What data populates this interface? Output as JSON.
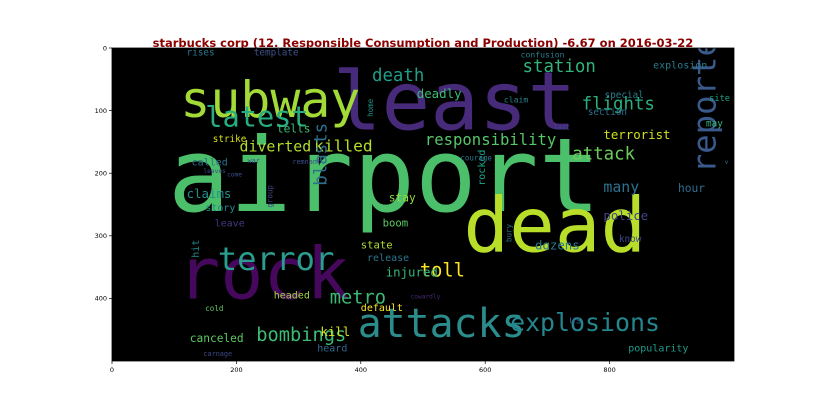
{
  "chart_data": {
    "type": "wordcloud",
    "title": "starbucks corp (12. Responsible Consumption and Production) -6.67 on 2016-03-22",
    "title_color": "#8b0000",
    "background": "#000000",
    "xlim": [
      0,
      1000
    ],
    "ylim": [
      500,
      0
    ],
    "x_ticks": [
      0,
      200,
      400,
      600,
      800
    ],
    "y_ticks": [
      0,
      100,
      200,
      300,
      400
    ],
    "words": [
      {
        "text": "airport",
        "x": 90,
        "y": 260,
        "size": 165,
        "color": "#4cbf6b"
      },
      {
        "text": "least",
        "x": 355,
        "y": 130,
        "size": 130,
        "color": "#472a7a"
      },
      {
        "text": "dead",
        "x": 565,
        "y": 325,
        "size": 122,
        "color": "#b8de29"
      },
      {
        "text": "rock",
        "x": 105,
        "y": 400,
        "size": 115,
        "color": "#46085c"
      },
      {
        "text": "subway",
        "x": 110,
        "y": 110,
        "size": 80,
        "color": "#a2da37"
      },
      {
        "text": "attacks",
        "x": 395,
        "y": 462,
        "size": 64,
        "color": "#2b8c8c"
      },
      {
        "text": "reported",
        "x": 970,
        "y": 200,
        "size": 52,
        "color": "#3b5a8c",
        "rotate": -90
      },
      {
        "text": "terror",
        "x": 170,
        "y": 355,
        "size": 52,
        "color": "#2a9d8f"
      },
      {
        "text": "latest",
        "x": 150,
        "y": 125,
        "size": 46,
        "color": "#27ad81"
      },
      {
        "text": "explosions",
        "x": 640,
        "y": 452,
        "size": 40,
        "color": "#24868e"
      },
      {
        "text": "death",
        "x": 418,
        "y": 53,
        "size": 28,
        "color": "#1f9e89"
      },
      {
        "text": "station",
        "x": 660,
        "y": 38,
        "size": 28,
        "color": "#2fb47c"
      },
      {
        "text": "flights",
        "x": 755,
        "y": 98,
        "size": 28,
        "color": "#2ab07f"
      },
      {
        "text": "attack",
        "x": 740,
        "y": 178,
        "size": 28,
        "color": "#6ccd5a"
      },
      {
        "text": "responsibility",
        "x": 503,
        "y": 155,
        "size": 25,
        "color": "#56c667"
      },
      {
        "text": "killed",
        "x": 325,
        "y": 165,
        "size": 26,
        "color": "#b5de2b"
      },
      {
        "text": "diverted",
        "x": 205,
        "y": 165,
        "size": 24,
        "color": "#b2dd2d"
      },
      {
        "text": "metro",
        "x": 350,
        "y": 408,
        "size": 30,
        "color": "#3bbb75"
      },
      {
        "text": "bombings",
        "x": 232,
        "y": 468,
        "size": 30,
        "color": "#3dbc74"
      },
      {
        "text": "toll",
        "x": 495,
        "y": 365,
        "size": 30,
        "color": "#fde725"
      },
      {
        "text": "terrorist",
        "x": 790,
        "y": 145,
        "size": 20,
        "color": "#d0e11c"
      },
      {
        "text": "blasts",
        "x": 345,
        "y": 220,
        "size": 28,
        "color": "#2d708e",
        "rotate": -90
      },
      {
        "text": "deadly",
        "x": 490,
        "y": 80,
        "size": 20,
        "color": "#3bbb75"
      },
      {
        "text": "special",
        "x": 792,
        "y": 80,
        "size": 15,
        "color": "#27808e"
      },
      {
        "text": "explosion",
        "x": 870,
        "y": 33,
        "size": 16,
        "color": "#287c8e"
      },
      {
        "text": "confusion",
        "x": 657,
        "y": 15,
        "size": 13,
        "color": "#277f8e"
      },
      {
        "text": "claim",
        "x": 630,
        "y": 87,
        "size": 13,
        "color": "#26828e"
      },
      {
        "text": "section",
        "x": 765,
        "y": 107,
        "size": 15,
        "color": "#2e6e8e"
      },
      {
        "text": "site",
        "x": 960,
        "y": 85,
        "size": 14,
        "color": "#1fa187"
      },
      {
        "text": "may",
        "x": 955,
        "y": 125,
        "size": 15,
        "color": "#31b57b"
      },
      {
        "text": "last",
        "x": 710,
        "y": 130,
        "size": 11,
        "color": "#3f4788"
      },
      {
        "text": "v",
        "x": 985,
        "y": 185,
        "size": 10,
        "color": "#2c728e"
      },
      {
        "text": "many",
        "x": 790,
        "y": 230,
        "size": 24,
        "color": "#2c728e"
      },
      {
        "text": "hour",
        "x": 910,
        "y": 230,
        "size": 18,
        "color": "#2e6e8e"
      },
      {
        "text": "police",
        "x": 790,
        "y": 275,
        "size": 20,
        "color": "#414487"
      },
      {
        "text": "know",
        "x": 815,
        "y": 310,
        "size": 15,
        "color": "#3e4a89"
      },
      {
        "text": "dozens",
        "x": 680,
        "y": 322,
        "size": 20,
        "color": "#2a788e"
      },
      {
        "text": "us",
        "x": 735,
        "y": 440,
        "size": 17,
        "color": "#355f8d"
      },
      {
        "text": "popularity",
        "x": 830,
        "y": 485,
        "size": 16,
        "color": "#1e9c89"
      },
      {
        "text": "rocked",
        "x": 600,
        "y": 220,
        "size": 16,
        "color": "#20a386",
        "rotate": -90
      },
      {
        "text": "bury",
        "x": 642,
        "y": 310,
        "size": 12,
        "color": "#2c728e",
        "rotate": -90
      },
      {
        "text": "home",
        "x": 420,
        "y": 110,
        "size": 12,
        "color": "#21918c",
        "rotate": -90
      },
      {
        "text": "courage",
        "x": 560,
        "y": 180,
        "size": 12,
        "color": "#2a768e"
      },
      {
        "text": "remnant",
        "x": 290,
        "y": 185,
        "size": 11,
        "color": "#3e4c8a"
      },
      {
        "text": "war",
        "x": 218,
        "y": 184,
        "size": 11,
        "color": "#3b518b"
      },
      {
        "text": "stay",
        "x": 445,
        "y": 245,
        "size": 18,
        "color": "#95d840"
      },
      {
        "text": "boom",
        "x": 435,
        "y": 285,
        "size": 17,
        "color": "#5ec962"
      },
      {
        "text": "state",
        "x": 400,
        "y": 320,
        "size": 17,
        "color": "#addc30"
      },
      {
        "text": "release",
        "x": 410,
        "y": 340,
        "size": 16,
        "color": "#2a768e"
      },
      {
        "text": "injured",
        "x": 440,
        "y": 365,
        "size": 20,
        "color": "#32b67a"
      },
      {
        "text": "kill",
        "x": 335,
        "y": 460,
        "size": 20,
        "color": "#d8e219"
      },
      {
        "text": "heard",
        "x": 330,
        "y": 485,
        "size": 16,
        "color": "#31688e"
      },
      {
        "text": "default",
        "x": 400,
        "y": 420,
        "size": 16,
        "color": "#fde725"
      },
      {
        "text": "cowardly",
        "x": 480,
        "y": 400,
        "size": 10,
        "color": "#482878"
      },
      {
        "text": "group",
        "x": 258,
        "y": 255,
        "size": 12,
        "color": "#3f4788",
        "rotate": -90
      },
      {
        "text": "headed",
        "x": 260,
        "y": 400,
        "size": 16,
        "color": "#9fda3a"
      },
      {
        "text": "canceled",
        "x": 125,
        "y": 470,
        "size": 18,
        "color": "#5ec962"
      },
      {
        "text": "carnage",
        "x": 147,
        "y": 492,
        "size": 11,
        "color": "#3e4989"
      },
      {
        "text": "cold",
        "x": 150,
        "y": 420,
        "size": 12,
        "color": "#5ec962"
      },
      {
        "text": "hit",
        "x": 140,
        "y": 335,
        "size": 16,
        "color": "#238a8d",
        "rotate": -90
      },
      {
        "text": "leave",
        "x": 165,
        "y": 285,
        "size": 16,
        "color": "#453781"
      },
      {
        "text": "story",
        "x": 150,
        "y": 260,
        "size": 16,
        "color": "#238a8d"
      },
      {
        "text": "claims",
        "x": 120,
        "y": 240,
        "size": 20,
        "color": "#21918c"
      },
      {
        "text": "come",
        "x": 185,
        "y": 205,
        "size": 10,
        "color": "#3b518b"
      },
      {
        "text": "leaves",
        "x": 147,
        "y": 200,
        "size": 10,
        "color": "#3e4a89"
      },
      {
        "text": "called",
        "x": 128,
        "y": 188,
        "size": 16,
        "color": "#2d708e"
      },
      {
        "text": "strike",
        "x": 162,
        "y": 150,
        "size": 15,
        "color": "#d8e219"
      },
      {
        "text": "tells",
        "x": 265,
        "y": 135,
        "size": 18,
        "color": "#3dbc74"
      },
      {
        "text": "rises",
        "x": 120,
        "y": 12,
        "size": 15,
        "color": "#2a788e"
      },
      {
        "text": "template",
        "x": 228,
        "y": 12,
        "size": 15,
        "color": "#3b528b"
      }
    ]
  }
}
